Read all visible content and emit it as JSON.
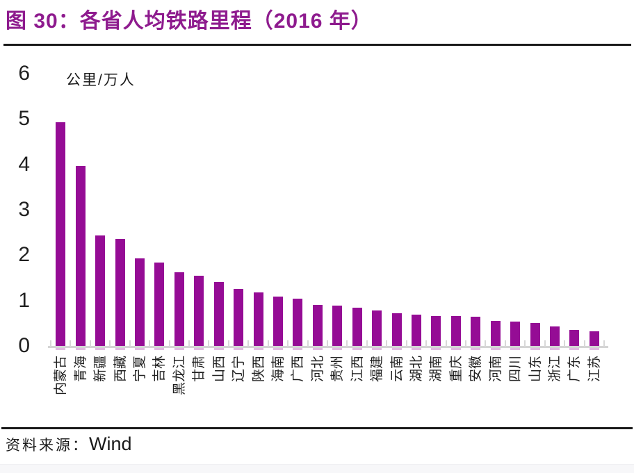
{
  "title": "图 30：各省人均铁路里程（2016 年）",
  "source": {
    "label": "资料来源：",
    "value": "Wind"
  },
  "colors": {
    "title": "#8E1B8E",
    "bar": "#950C95",
    "axis": "#d4d4d4",
    "rule": "#1a1a1a"
  },
  "chart_data": {
    "type": "bar",
    "title": "各省人均铁路里程（2016 年）",
    "unit_label": "公里/万人",
    "xlabel": "",
    "ylabel": "公里/万人",
    "ylim": [
      0,
      6
    ],
    "yticks": [
      0,
      1,
      2,
      3,
      4,
      5,
      6
    ],
    "grid": false,
    "legend": false,
    "bar_color": "#950C95",
    "categories": [
      "内蒙古",
      "青海",
      "新疆",
      "西藏",
      "宁夏",
      "吉林",
      "黑龙江",
      "甘肃",
      "山西",
      "辽宁",
      "陕西",
      "海南",
      "广西",
      "河北",
      "贵州",
      "江西",
      "福建",
      "云南",
      "湖北",
      "湖南",
      "重庆",
      "安徽",
      "河南",
      "四川",
      "山东",
      "浙江",
      "广东",
      "江苏"
    ],
    "values": [
      4.93,
      3.97,
      2.43,
      2.36,
      1.93,
      1.84,
      1.62,
      1.55,
      1.41,
      1.25,
      1.18,
      1.09,
      1.04,
      0.91,
      0.89,
      0.84,
      0.78,
      0.72,
      0.69,
      0.66,
      0.66,
      0.64,
      0.55,
      0.54,
      0.51,
      0.43,
      0.35,
      0.32
    ]
  }
}
